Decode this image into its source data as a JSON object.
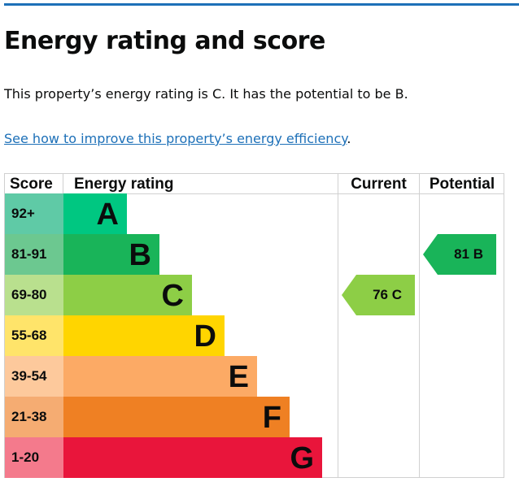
{
  "title": "Energy rating and score",
  "summary": "This property’s energy rating is C. It has the potential to be B.",
  "link_text": "See how to improve this property’s energy efficiency",
  "link_suffix": ".",
  "headers": {
    "score": "Score",
    "rating": "Energy rating",
    "current": "Current",
    "potential": "Potential"
  },
  "bands": [
    {
      "score": "92+",
      "letter": "A",
      "color": "#00c781",
      "light": "#5fcaa6"
    },
    {
      "score": "81-91",
      "letter": "B",
      "color": "#19b459",
      "light": "#6cc890"
    },
    {
      "score": "69-80",
      "letter": "C",
      "color": "#8dce46",
      "light": "#b9e08e"
    },
    {
      "score": "55-68",
      "letter": "D",
      "color": "#ffd500",
      "light": "#ffe46a"
    },
    {
      "score": "39-54",
      "letter": "E",
      "color": "#fcaa65",
      "light": "#fdc99c"
    },
    {
      "score": "21-38",
      "letter": "F",
      "color": "#ef8023",
      "light": "#f5ac72"
    },
    {
      "score": "1-20",
      "letter": "G",
      "color": "#e9153b",
      "light": "#f47a8c"
    }
  ],
  "current": {
    "label": "76  C",
    "band_index": 2,
    "color": "#8dce46"
  },
  "potential": {
    "label": "81  B",
    "band_index": 1,
    "color": "#19b459"
  }
}
